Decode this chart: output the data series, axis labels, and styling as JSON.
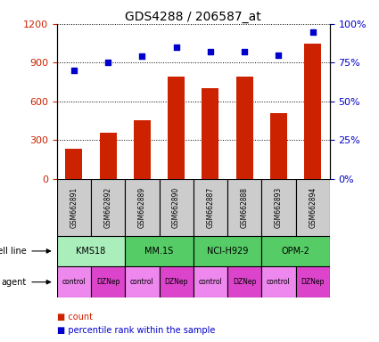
{
  "title": "GDS4288 / 206587_at",
  "samples": [
    "GSM662891",
    "GSM662892",
    "GSM662889",
    "GSM662890",
    "GSM662887",
    "GSM662888",
    "GSM662893",
    "GSM662894"
  ],
  "counts": [
    230,
    355,
    455,
    790,
    700,
    790,
    510,
    1050
  ],
  "percentile_ranks": [
    70,
    75,
    79,
    85,
    82,
    82,
    80,
    95
  ],
  "ylim_left": [
    0,
    1200
  ],
  "ylim_right": [
    0,
    100
  ],
  "yticks_left": [
    0,
    300,
    600,
    900,
    1200
  ],
  "yticks_right": [
    0,
    25,
    50,
    75,
    100
  ],
  "ytick_labels_right": [
    "0%",
    "25%",
    "50%",
    "75%",
    "100%"
  ],
  "bar_color": "#cc2200",
  "scatter_color": "#0000cc",
  "cell_lines": [
    {
      "label": "KMS18",
      "start": 0,
      "end": 2,
      "color": "#aaeebb"
    },
    {
      "label": "MM.1S",
      "start": 2,
      "end": 4,
      "color": "#55cc66"
    },
    {
      "label": "NCI-H929",
      "start": 4,
      "end": 6,
      "color": "#55cc66"
    },
    {
      "label": "OPM-2",
      "start": 6,
      "end": 8,
      "color": "#55cc66"
    }
  ],
  "agents": [
    "control",
    "DZNep",
    "control",
    "DZNep",
    "control",
    "DZNep",
    "control",
    "DZNep"
  ],
  "agent_colors": [
    "#ee88ee",
    "#dd44cc",
    "#ee88ee",
    "#dd44cc",
    "#ee88ee",
    "#dd44cc",
    "#ee88ee",
    "#dd44cc"
  ],
  "legend_count_color": "#cc2200",
  "legend_rank_color": "#0000cc",
  "row_label_cellline": "cell line",
  "row_label_agent": "agent",
  "gsm_bg_color": "#cccccc"
}
